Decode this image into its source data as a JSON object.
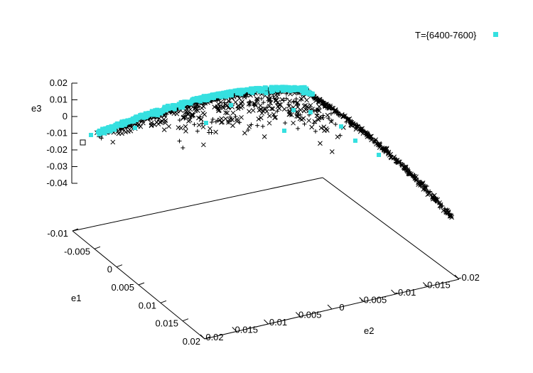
{
  "chart_data": {
    "type": "scatter",
    "projection": "3d",
    "title": "",
    "axes": {
      "e1": {
        "label": "e1",
        "range": [
          -0.01,
          0.02
        ],
        "ticks": [
          "-0.01",
          "-0.005",
          "0",
          "0.005",
          "0.01",
          "0.015",
          "0.02"
        ]
      },
      "e2": {
        "label": "e2",
        "range": [
          -0.02,
          0.02
        ],
        "ticks": [
          "0.02",
          "0.015",
          "0.01",
          "0.005",
          "0",
          "-0.005",
          "-0.01",
          "-0.015",
          "-0.02"
        ]
      },
      "e3": {
        "label": "e3",
        "range": [
          -0.04,
          0.02
        ],
        "ticks": [
          "0.02",
          "0.01",
          "0",
          "-0.01",
          "-0.02",
          "-0.03",
          "-0.04"
        ]
      }
    },
    "legend": {
      "position": "top-right",
      "entries": [
        {
          "name": "T={6400-7600}",
          "marker": "filled-square",
          "color": "#36e0e0"
        }
      ]
    },
    "series": [
      {
        "name": "T={6400-7600}",
        "marker": "filled-square",
        "color": "#36e0e0",
        "points": [
          [
            0.0,
            0.018,
            -0.012
          ],
          [
            0.001,
            0.016,
            -0.01
          ],
          [
            0.002,
            0.014,
            -0.006
          ],
          [
            0.003,
            0.012,
            -0.002
          ],
          [
            0.004,
            0.01,
            0.002
          ],
          [
            0.005,
            0.008,
            0.006
          ],
          [
            0.006,
            0.006,
            0.009
          ],
          [
            0.007,
            0.004,
            0.012
          ],
          [
            0.007,
            0.002,
            0.014
          ],
          [
            0.008,
            0.0,
            0.016
          ],
          [
            0.008,
            -0.002,
            0.017
          ],
          [
            0.008,
            -0.004,
            0.018
          ],
          [
            0.009,
            -0.006,
            0.018
          ],
          [
            0.009,
            -0.007,
            0.019
          ],
          [
            0.009,
            -0.008,
            0.019
          ],
          [
            0.01,
            0.004,
            0.001
          ],
          [
            0.011,
            -0.002,
            -0.004
          ],
          [
            0.012,
            -0.004,
            0.002
          ],
          [
            0.013,
            -0.01,
            -0.01
          ],
          [
            0.014,
            -0.014,
            -0.016
          ]
        ]
      },
      {
        "name": "",
        "marker": "cross",
        "color": "#000000",
        "points": [
          [
            0.0,
            0.017,
            -0.013
          ],
          [
            0.002,
            0.013,
            -0.006
          ],
          [
            0.004,
            0.01,
            0.001
          ],
          [
            0.006,
            0.006,
            0.008
          ],
          [
            0.008,
            0.002,
            0.012
          ],
          [
            0.01,
            -0.002,
            0.014
          ],
          [
            0.012,
            0.0,
            -0.008
          ],
          [
            0.013,
            -0.004,
            -0.012
          ],
          [
            0.014,
            -0.008,
            -0.006
          ],
          [
            0.015,
            -0.012,
            -0.02
          ],
          [
            0.016,
            -0.016,
            -0.026
          ],
          [
            0.018,
            -0.019,
            -0.032
          ]
        ]
      }
    ],
    "unlabeled_marker": "open-square"
  }
}
